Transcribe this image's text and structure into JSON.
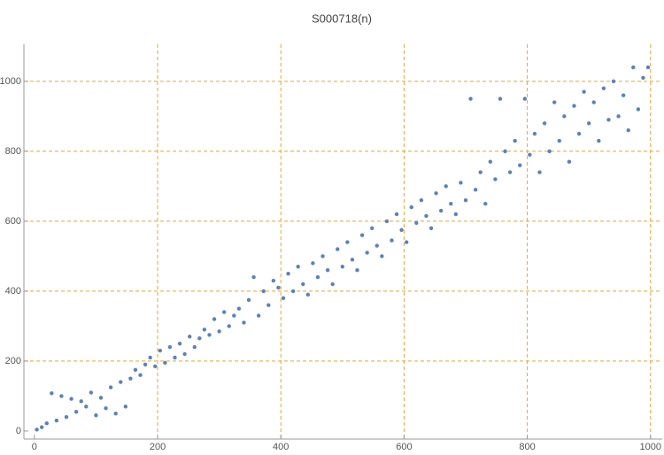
{
  "chart_data": {
    "type": "scatter",
    "title": "S000718(n)",
    "x": [
      4,
      12,
      20,
      28,
      36,
      44,
      52,
      60,
      68,
      76,
      84,
      92,
      100,
      108,
      116,
      124,
      132,
      140,
      148,
      156,
      164,
      172,
      180,
      188,
      196,
      204,
      212,
      220,
      228,
      236,
      244,
      252,
      260,
      268,
      276,
      284,
      292,
      300,
      308,
      316,
      324,
      332,
      340,
      348,
      356,
      364,
      372,
      380,
      388,
      396,
      404,
      412,
      420,
      428,
      436,
      444,
      452,
      460,
      468,
      476,
      484,
      492,
      500,
      508,
      516,
      524,
      532,
      540,
      548,
      556,
      564,
      572,
      580,
      588,
      596,
      604,
      612,
      620,
      628,
      636,
      644,
      652,
      660,
      668,
      676,
      684,
      692,
      700,
      708,
      716,
      724,
      732,
      740,
      748,
      756,
      764,
      772,
      780,
      788,
      796,
      804,
      812,
      820,
      828,
      836,
      844,
      852,
      860,
      868,
      876,
      884,
      892,
      900,
      908,
      916,
      924,
      932,
      940,
      948,
      956,
      964,
      972,
      980,
      988,
      996
    ],
    "series": [
      {
        "color": "#5e81b5",
        "values": [
          4,
          11,
          22,
          108,
          30,
          100,
          40,
          92,
          55,
          85,
          70,
          110,
          45,
          95,
          65,
          125,
          50,
          140,
          70,
          150,
          175,
          160,
          190,
          210,
          185,
          230,
          195,
          240,
          210,
          250,
          220,
          270,
          240,
          265,
          290,
          275,
          320,
          285,
          340,
          300,
          330,
          350,
          310,
          375,
          440,
          330,
          400,
          360,
          430,
          410,
          380,
          450,
          400,
          470,
          420,
          390,
          480,
          440,
          500,
          460,
          420,
          520,
          470,
          540,
          490,
          460,
          560,
          510,
          580,
          530,
          500,
          600,
          545,
          620,
          575,
          540,
          640,
          595,
          660,
          615,
          580,
          680,
          630,
          700,
          650,
          620,
          710,
          660,
          950,
          690,
          740,
          650,
          770,
          720,
          950,
          800,
          740,
          830,
          760,
          950,
          790,
          850,
          740,
          880,
          800,
          940,
          830,
          900,
          770,
          930,
          850,
          970,
          880,
          940,
          830,
          980,
          890,
          1000,
          900,
          960,
          860,
          1040,
          920,
          1010,
          1040
        ]
      }
    ],
    "xlim": [
      -17,
      1019
    ],
    "ylim": [
      -23,
      1106
    ],
    "xticks": [
      0,
      200,
      400,
      600,
      800,
      1000
    ],
    "yticks": [
      0,
      200,
      400,
      600,
      800,
      1000
    ],
    "grid": true
  }
}
